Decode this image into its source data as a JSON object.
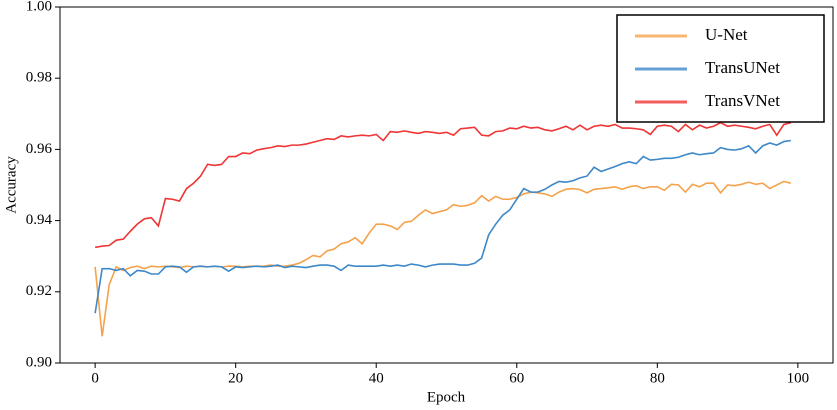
{
  "chart_data": {
    "type": "line",
    "x_label": "Epoch",
    "y_label": "Accuracy",
    "x": [
      0,
      1,
      2,
      3,
      4,
      5,
      6,
      7,
      8,
      9,
      10,
      11,
      12,
      13,
      14,
      15,
      16,
      17,
      18,
      19,
      20,
      21,
      22,
      23,
      24,
      25,
      26,
      27,
      28,
      29,
      30,
      31,
      32,
      33,
      34,
      35,
      36,
      37,
      38,
      39,
      40,
      41,
      42,
      43,
      44,
      45,
      46,
      47,
      48,
      49,
      50,
      51,
      52,
      53,
      54,
      55,
      56,
      57,
      58,
      59,
      60,
      61,
      62,
      63,
      64,
      65,
      66,
      67,
      68,
      69,
      70,
      71,
      72,
      73,
      74,
      75,
      76,
      77,
      78,
      79,
      80,
      81,
      82,
      83,
      84,
      85,
      86,
      87,
      88,
      89,
      90,
      91,
      92,
      93,
      94,
      95,
      96,
      97,
      98,
      99
    ],
    "series": [
      {
        "name": "U-Net",
        "color": "#f5a24b",
        "values": [
          0.927,
          0.9075,
          0.922,
          0.927,
          0.926,
          0.9268,
          0.9272,
          0.9265,
          0.9272,
          0.927,
          0.9272,
          0.927,
          0.9268,
          0.9272,
          0.927,
          0.9272,
          0.927,
          0.9272,
          0.927,
          0.9272,
          0.9272,
          0.927,
          0.9272,
          0.9272,
          0.9272,
          0.9275,
          0.9272,
          0.9272,
          0.9275,
          0.928,
          0.929,
          0.9302,
          0.9298,
          0.9315,
          0.932,
          0.9335,
          0.934,
          0.9352,
          0.9335,
          0.9365,
          0.939,
          0.939,
          0.9385,
          0.9375,
          0.9395,
          0.9398,
          0.9415,
          0.943,
          0.942,
          0.9425,
          0.943,
          0.9445,
          0.944,
          0.9443,
          0.945,
          0.947,
          0.9455,
          0.9468,
          0.946,
          0.946,
          0.9465,
          0.9475,
          0.948,
          0.9478,
          0.9475,
          0.9468,
          0.948,
          0.9488,
          0.949,
          0.9487,
          0.9478,
          0.9488,
          0.949,
          0.9492,
          0.9495,
          0.9488,
          0.9495,
          0.9498,
          0.949,
          0.9495,
          0.9495,
          0.9485,
          0.9502,
          0.95,
          0.948,
          0.9502,
          0.9495,
          0.9505,
          0.9505,
          0.9478,
          0.95,
          0.9498,
          0.9502,
          0.9508,
          0.9502,
          0.9505,
          0.949,
          0.95,
          0.951,
          0.9505
        ]
      },
      {
        "name": "TransUNet",
        "color": "#3d88c8",
        "values": [
          0.914,
          0.9265,
          0.9265,
          0.926,
          0.9265,
          0.9245,
          0.926,
          0.9258,
          0.925,
          0.925,
          0.927,
          0.9272,
          0.927,
          0.9255,
          0.927,
          0.9272,
          0.927,
          0.9272,
          0.927,
          0.9258,
          0.927,
          0.9268,
          0.927,
          0.9272,
          0.927,
          0.9272,
          0.9275,
          0.9268,
          0.9272,
          0.927,
          0.9268,
          0.9272,
          0.9275,
          0.9275,
          0.9272,
          0.926,
          0.9275,
          0.9272,
          0.9272,
          0.9272,
          0.9272,
          0.9275,
          0.9272,
          0.9275,
          0.9272,
          0.9278,
          0.9275,
          0.927,
          0.9275,
          0.9278,
          0.9278,
          0.9278,
          0.9275,
          0.9275,
          0.928,
          0.9295,
          0.936,
          0.939,
          0.9415,
          0.943,
          0.946,
          0.949,
          0.948,
          0.948,
          0.9488,
          0.95,
          0.951,
          0.9508,
          0.9512,
          0.952,
          0.9525,
          0.955,
          0.9538,
          0.9545,
          0.9552,
          0.956,
          0.9565,
          0.956,
          0.958,
          0.957,
          0.9572,
          0.9575,
          0.9575,
          0.9578,
          0.9585,
          0.959,
          0.9585,
          0.9588,
          0.959,
          0.9605,
          0.96,
          0.9598,
          0.9602,
          0.961,
          0.959,
          0.961,
          0.9618,
          0.9612,
          0.9622,
          0.9625
        ]
      },
      {
        "name": "TransVNet",
        "color": "#ef3535",
        "values": [
          0.9325,
          0.9328,
          0.933,
          0.9345,
          0.9348,
          0.937,
          0.939,
          0.9405,
          0.9408,
          0.9385,
          0.9462,
          0.946,
          0.9455,
          0.949,
          0.9505,
          0.9525,
          0.9558,
          0.9555,
          0.9558,
          0.958,
          0.958,
          0.959,
          0.9588,
          0.9598,
          0.9602,
          0.9605,
          0.961,
          0.9608,
          0.9612,
          0.9612,
          0.9615,
          0.962,
          0.9625,
          0.963,
          0.9628,
          0.9638,
          0.9635,
          0.9638,
          0.964,
          0.9638,
          0.9642,
          0.9625,
          0.965,
          0.9648,
          0.9652,
          0.9648,
          0.9645,
          0.965,
          0.9648,
          0.9645,
          0.9648,
          0.964,
          0.9658,
          0.966,
          0.9662,
          0.964,
          0.9638,
          0.965,
          0.9652,
          0.966,
          0.9658,
          0.9665,
          0.966,
          0.9662,
          0.9655,
          0.9652,
          0.9658,
          0.9665,
          0.9655,
          0.9668,
          0.9655,
          0.9665,
          0.9668,
          0.9665,
          0.967,
          0.966,
          0.966,
          0.9658,
          0.9655,
          0.9642,
          0.9665,
          0.9668,
          0.9665,
          0.965,
          0.967,
          0.9655,
          0.9668,
          0.966,
          0.9665,
          0.9675,
          0.9665,
          0.9668,
          0.9665,
          0.9662,
          0.9658,
          0.9665,
          0.967,
          0.964,
          0.967,
          0.9675
        ]
      }
    ],
    "xlim": [
      -5,
      105
    ],
    "xticks": [
      0,
      20,
      40,
      60,
      80,
      100
    ],
    "ylim": [
      0.9,
      1.0
    ],
    "yticks": [
      {
        "value": 0.9,
        "label": "0.90"
      },
      0.92,
      0.94,
      0.96,
      0.98,
      {
        "value": 1.0,
        "label": "1.00"
      }
    ],
    "grid": false,
    "legend": "upper right"
  }
}
